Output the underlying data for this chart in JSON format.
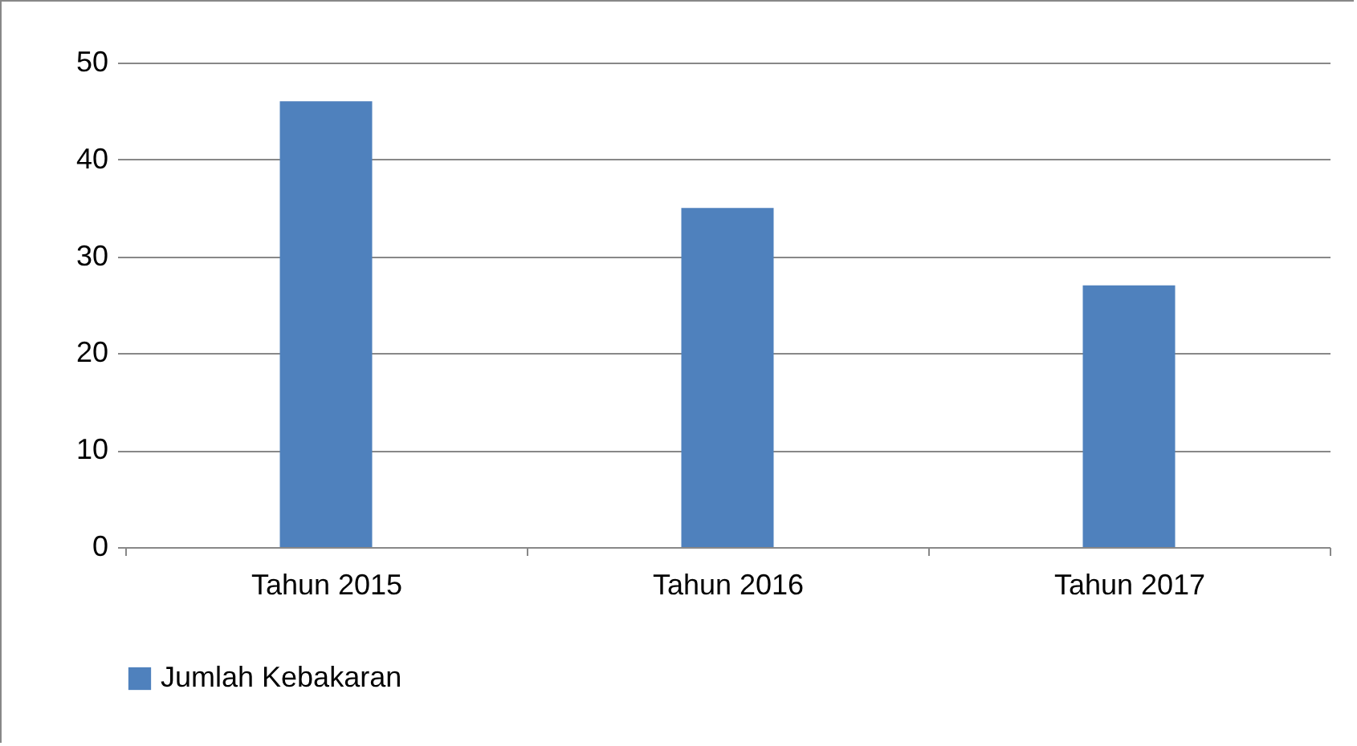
{
  "chart_data": {
    "type": "bar",
    "categories": [
      "Tahun 2015",
      "Tahun 2016",
      "Tahun 2017"
    ],
    "series": [
      {
        "name": "Jumlah Kebakaran",
        "color": "#4f81bd",
        "values": [
          46,
          35,
          27
        ]
      }
    ],
    "ylim": [
      0,
      50
    ],
    "yticks": [
      0,
      10,
      20,
      30,
      40,
      50
    ],
    "grid": "y",
    "legend": "bottom"
  }
}
